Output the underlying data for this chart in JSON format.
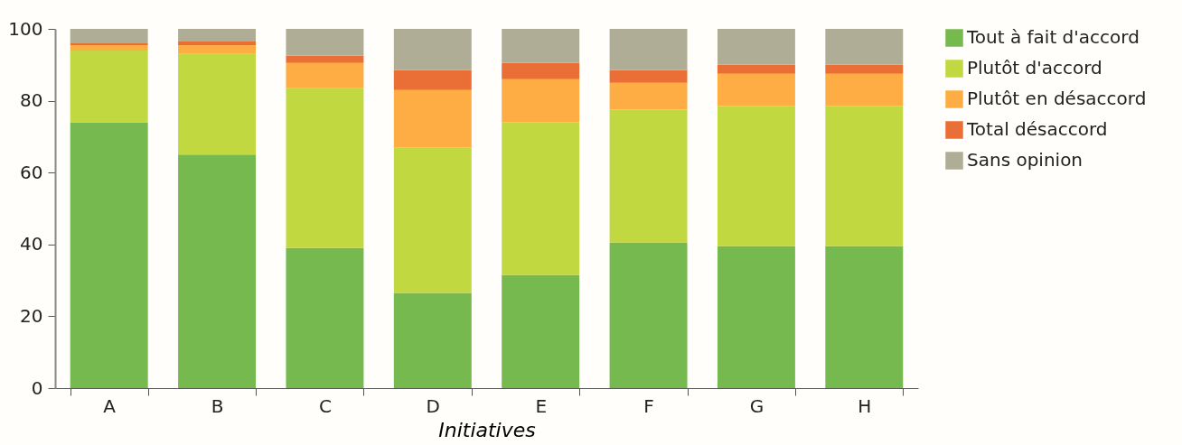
{
  "chart_data": {
    "type": "bar",
    "stacked": true,
    "xlabel": "Initiatives",
    "categories": [
      "A",
      "B",
      "C",
      "D",
      "E",
      "F",
      "G",
      "H"
    ],
    "series": [
      {
        "name": "Tout à fait d'accord",
        "color": "#76b94e",
        "values": [
          74,
          65,
          39,
          26.5,
          31.5,
          40.5,
          39.5,
          39.5
        ]
      },
      {
        "name": "Plutôt d'accord",
        "color": "#c1d841",
        "values": [
          20,
          28,
          44.5,
          40.5,
          42.5,
          37,
          39,
          39
        ]
      },
      {
        "name": "Plutôt en désaccord",
        "color": "#fdad44",
        "values": [
          1.5,
          2.5,
          7,
          16,
          12,
          7.5,
          9,
          9
        ]
      },
      {
        "name": "Total désaccord",
        "color": "#ea6f36",
        "values": [
          0.5,
          1,
          2,
          5.5,
          4.5,
          3.5,
          2.5,
          2.5
        ]
      },
      {
        "name": "Sans opinion",
        "color": "#b0ad96",
        "values": [
          4,
          3.5,
          7.5,
          11.5,
          9.5,
          11.5,
          10,
          10
        ]
      }
    ],
    "ylim": [
      0,
      100
    ],
    "yticks": [
      0,
      20,
      40,
      60,
      80,
      100
    ],
    "legend": "right"
  }
}
